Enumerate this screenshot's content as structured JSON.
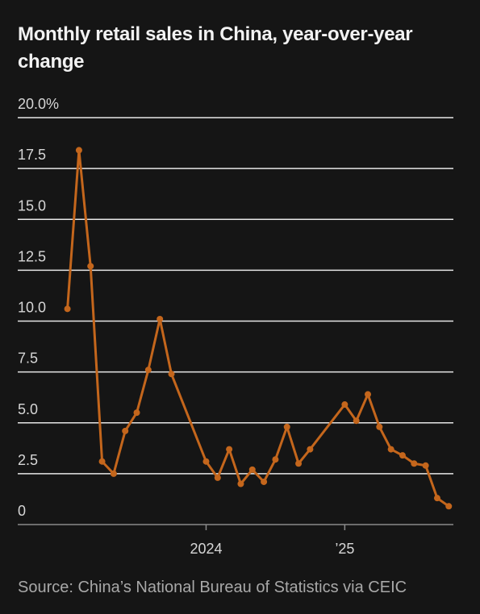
{
  "chart_data": {
    "type": "line",
    "title": "Monthly retail sales in China, year-over-year change",
    "source": "Source: China’s National Bureau of Statistics via CEIC",
    "x": [
      0,
      1,
      2,
      3,
      4,
      5,
      6,
      7,
      8,
      9,
      12,
      13,
      14,
      15,
      16,
      17,
      18,
      19,
      20,
      21,
      24,
      25,
      26,
      27,
      28,
      29,
      30,
      31,
      32,
      33
    ],
    "series": [
      {
        "name": "Retail sales",
        "color": "#c4661c",
        "values": [
          10.6,
          18.4,
          12.7,
          3.1,
          2.5,
          4.6,
          5.5,
          7.6,
          10.1,
          7.4,
          3.1,
          2.3,
          3.7,
          2.0,
          2.7,
          2.1,
          3.2,
          4.8,
          3.0,
          3.7,
          5.9,
          5.1,
          6.4,
          4.8,
          3.7,
          3.4,
          3.0,
          2.9,
          1.3,
          0.9
        ]
      }
    ],
    "xlim": [
      -4.3,
      33.4
    ],
    "xticks": [
      {
        "value": 12,
        "label": "2024"
      },
      {
        "value": 24,
        "label": "’25"
      }
    ],
    "ylim": [
      0,
      20
    ],
    "yticks": [
      0,
      2.5,
      5,
      7.5,
      10,
      12.5,
      15,
      17.5,
      20
    ],
    "ytick_labels": [
      "0",
      "2.5",
      "5.0",
      "7.5",
      "10.0",
      "12.5",
      "15.0",
      "17.5",
      "20.0%"
    ],
    "grid": true
  }
}
